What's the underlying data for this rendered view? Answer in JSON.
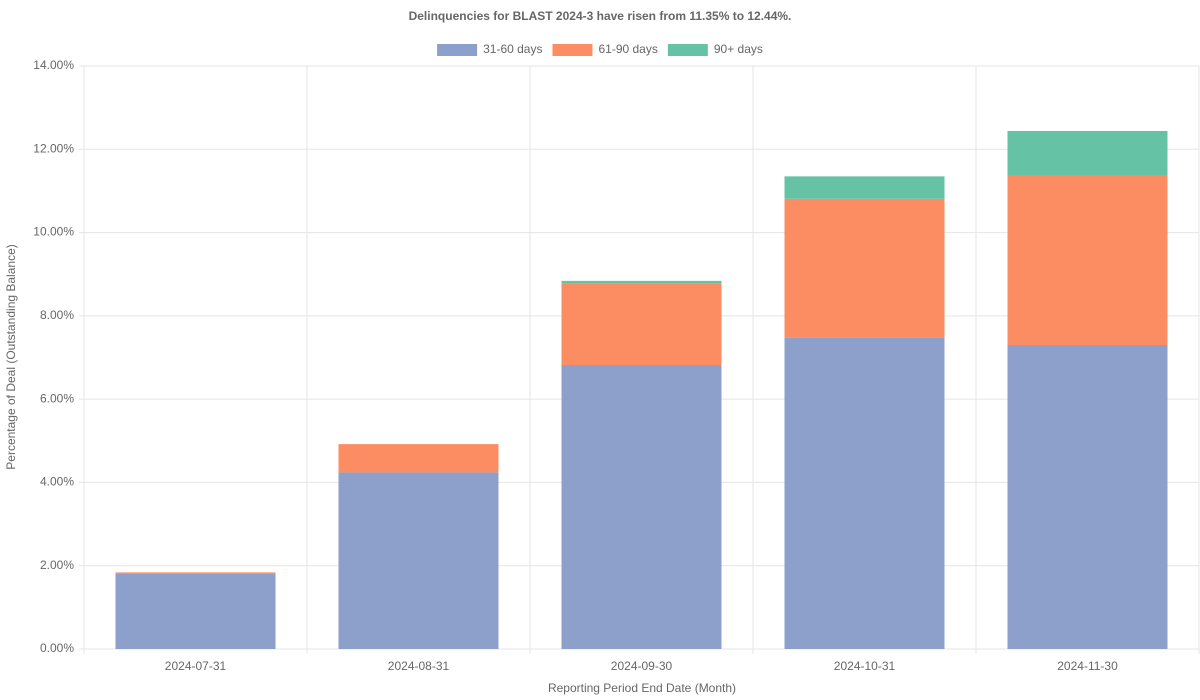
{
  "chart_data": {
    "type": "stacked-bar",
    "title": "Delinquencies for BLAST 2024-3 have risen from 11.35% to 12.44%.",
    "x_label": "Reporting Period End Date (Month)",
    "y_label": "Percentage of Deal (Outstanding Balance)",
    "categories": [
      "2024-07-31",
      "2024-08-31",
      "2024-09-30",
      "2024-10-31",
      "2024-11-30"
    ],
    "series": [
      {
        "name": "31-60 days",
        "color": "#8da0cb",
        "values": [
          1.81,
          4.24,
          6.82,
          7.47,
          7.3
        ]
      },
      {
        "name": "61-90 days",
        "color": "#fc8d62",
        "values": [
          0.03,
          0.68,
          1.95,
          3.34,
          4.06
        ]
      },
      {
        "name": "90+ days",
        "color": "#66c2a5",
        "values": [
          0,
          0,
          0.07,
          0.54,
          1.08
        ]
      }
    ],
    "ylim": [
      0,
      14
    ],
    "yticks": [
      {
        "value": 0,
        "label": "0.00%"
      },
      {
        "value": 2,
        "label": "2.00%"
      },
      {
        "value": 4,
        "label": "4.00%"
      },
      {
        "value": 6,
        "label": "6.00%"
      },
      {
        "value": 8,
        "label": "8.00%"
      },
      {
        "value": 10,
        "label": "10.00%"
      },
      {
        "value": 12,
        "label": "12.00%"
      },
      {
        "value": 14,
        "label": "14.00%"
      }
    ],
    "grid": true,
    "legend": "top"
  }
}
